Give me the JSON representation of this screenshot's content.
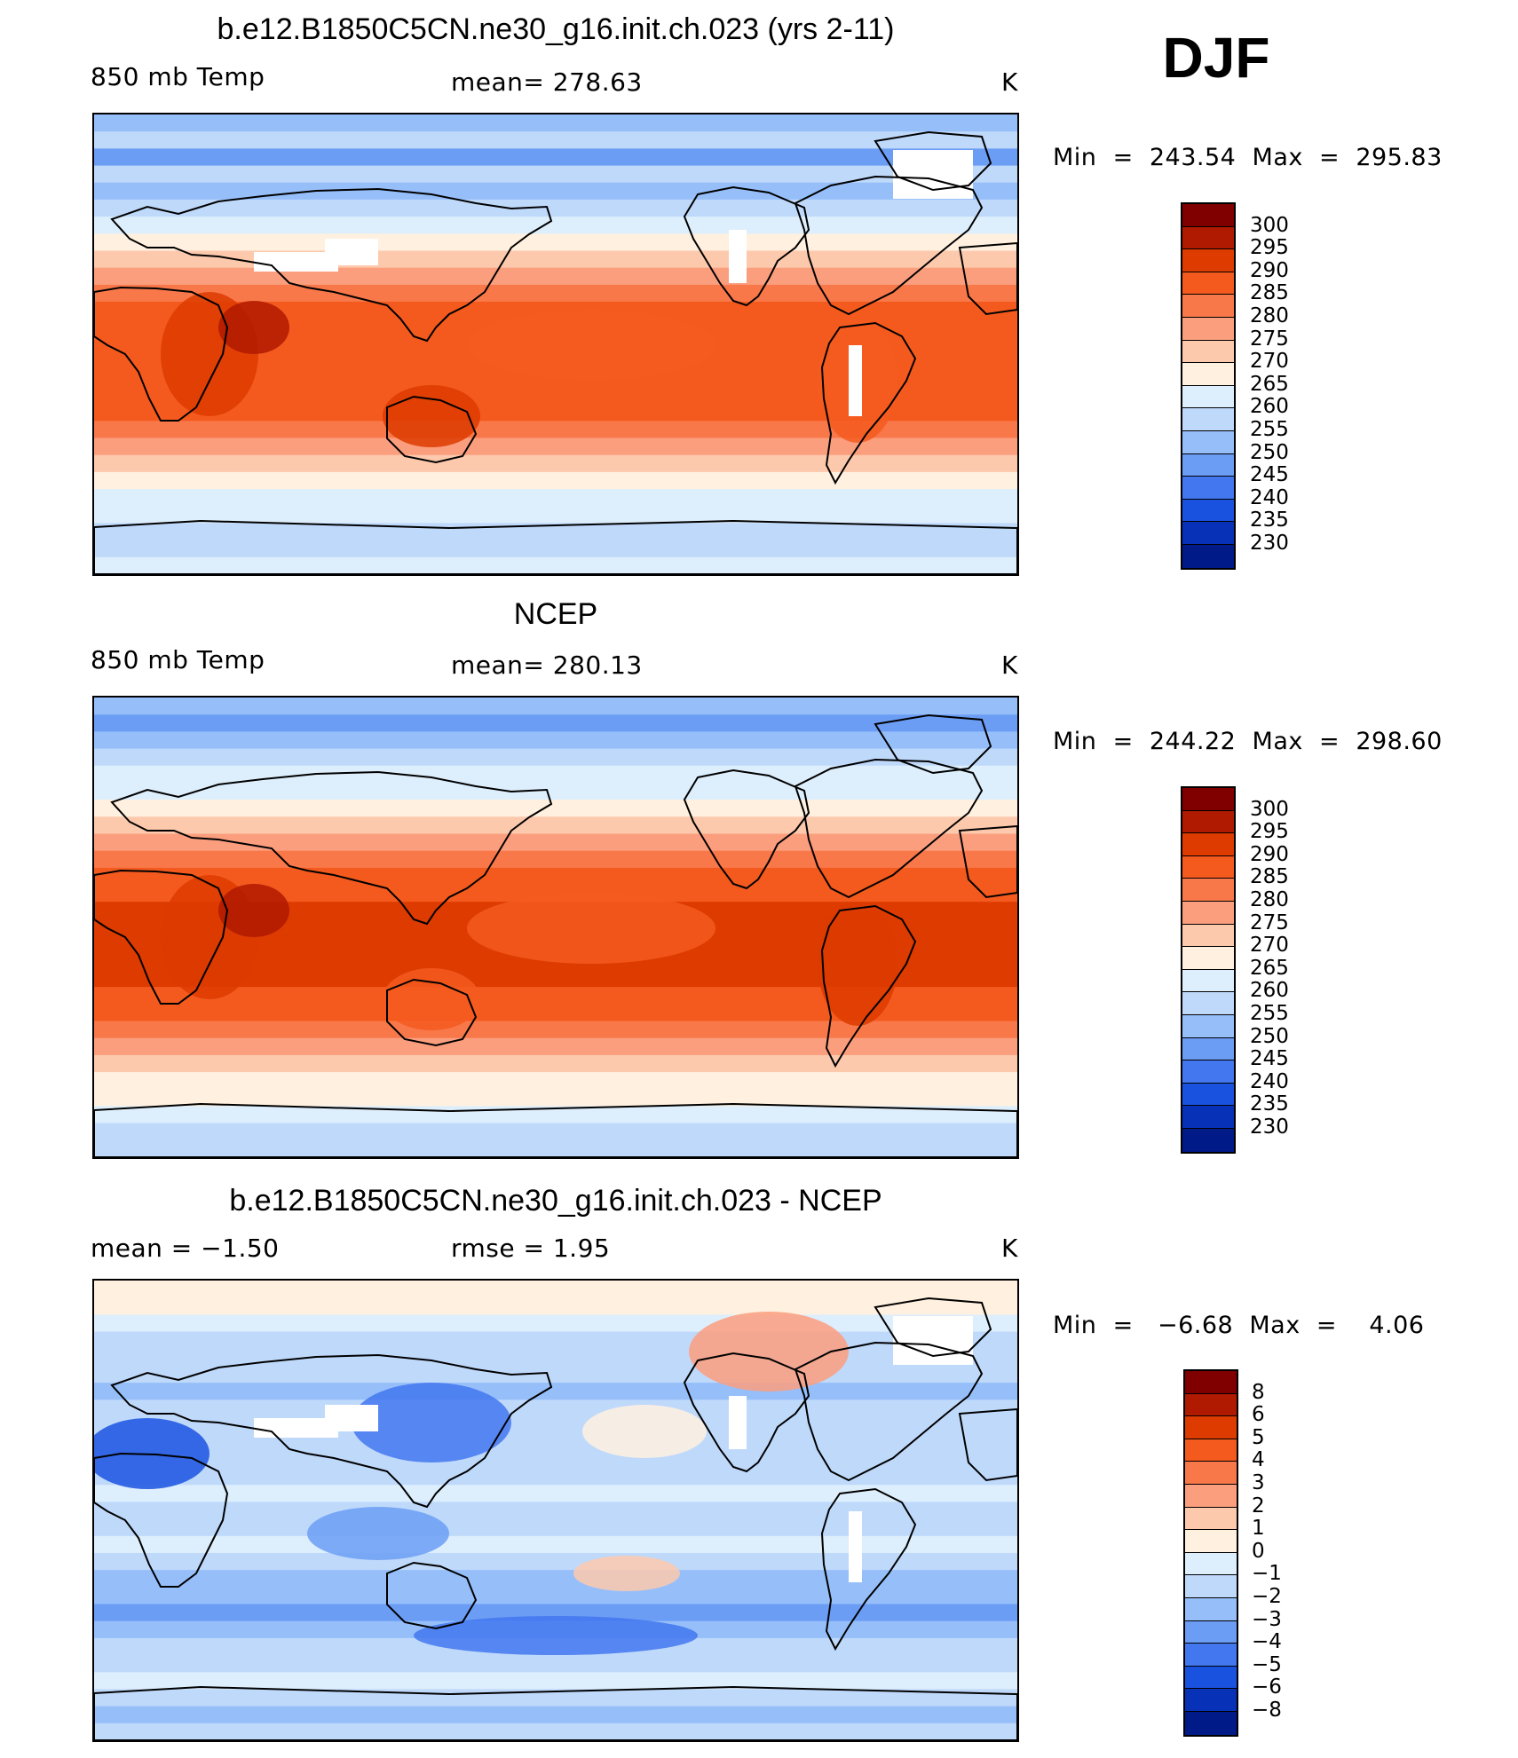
{
  "season": "DJF",
  "panels": [
    {
      "title": "b.e12.B1850C5CN.ne30_g16.init.ch.023 (yrs 2-11)",
      "left_label": "850 mb Temp",
      "center_label": "mean= 278.63",
      "units": "K",
      "min_label": "Min",
      "min_value": "243.54",
      "max_label": "Max",
      "max_value": "295.83",
      "colorbar_labels": [
        "300",
        "295",
        "290",
        "285",
        "280",
        "275",
        "270",
        "265",
        "260",
        "255",
        "250",
        "245",
        "240",
        "235",
        "230"
      ]
    },
    {
      "title": "NCEP",
      "left_label": "850 mb Temp",
      "center_label": "mean= 280.13",
      "units": "K",
      "min_label": "Min",
      "min_value": "244.22",
      "max_label": "Max",
      "max_value": "298.60",
      "colorbar_labels": [
        "300",
        "295",
        "290",
        "285",
        "280",
        "275",
        "270",
        "265",
        "260",
        "255",
        "250",
        "245",
        "240",
        "235",
        "230"
      ]
    },
    {
      "title": "b.e12.B1850C5CN.ne30_g16.init.ch.023 - NCEP",
      "left_label": "mean =   −1.50",
      "center_label": "rmse =    1.95",
      "units": "K",
      "min_label": "Min",
      "min_value": "−6.68",
      "max_label": "Max",
      "max_value": "4.06",
      "colorbar_labels": [
        "8",
        "6",
        "5",
        "4",
        "3",
        "2",
        "1",
        "0",
        "−1",
        "−2",
        "−3",
        "−4",
        "−5",
        "−6",
        "−8"
      ]
    }
  ],
  "colormap": [
    "#800000",
    "#b01a00",
    "#dd3b00",
    "#f45a1e",
    "#f8784a",
    "#fb9e7e",
    "#fdc9ad",
    "#fff0df",
    "#ddeefc",
    "#bfd9fb",
    "#96bffa",
    "#6b9df5",
    "#4377ef",
    "#1a52e0",
    "#0732b8",
    "#001a87"
  ],
  "colors": {
    "land_outline": "#000000",
    "missing": "#ffffff"
  }
}
